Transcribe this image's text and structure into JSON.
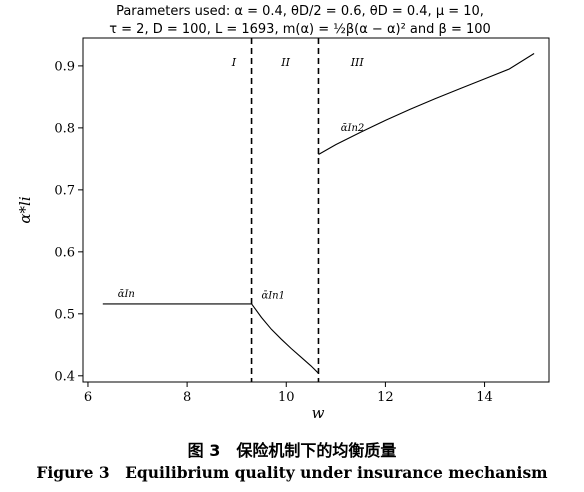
{
  "figure": {
    "caption_cn": "图 3　保险机制下的均衡质量",
    "caption_en": "Figure 3　Equilibrium quality under insurance mechanism"
  },
  "chart_data": {
    "type": "line",
    "title_line1": "Parameters used: α = 0.4, θD/2 = 0.6, θD = 0.4, μ = 10,",
    "title_line2": "τ = 2, D = 100, L = 1693, m(α) = ½β(α − α)² and β = 100",
    "xlabel": "w",
    "ylabel": "α*li",
    "xlim": [
      5.9,
      15.3
    ],
    "ylim": [
      0.39,
      0.945
    ],
    "xticks": [
      6,
      8,
      10,
      12,
      14
    ],
    "yticks": [
      0.4,
      0.5,
      0.6,
      0.7,
      0.8,
      0.9
    ],
    "xtick_labels": [
      "6",
      "8",
      "10",
      "12",
      "14"
    ],
    "ytick_labels": [
      "0.4",
      "0.5",
      "0.6",
      "0.7",
      "0.8",
      "0.9"
    ],
    "vlines": [
      9.3,
      10.65
    ],
    "regions": [
      {
        "label": "I",
        "x": 8.9,
        "y": 0.9
      },
      {
        "label": "II",
        "x": 9.9,
        "y": 0.9
      },
      {
        "label": "III",
        "x": 11.3,
        "y": 0.9
      }
    ],
    "series": [
      {
        "name": "ᾱIn",
        "label_x": 6.6,
        "label_y": 0.527,
        "x": [
          6.3,
          9.3
        ],
        "y": [
          0.516,
          0.516
        ]
      },
      {
        "name": "ᾱIn1",
        "label_x": 9.5,
        "label_y": 0.525,
        "x": [
          9.3,
          9.5,
          9.7,
          9.9,
          10.1,
          10.3,
          10.5,
          10.65
        ],
        "y": [
          0.516,
          0.494,
          0.475,
          0.459,
          0.444,
          0.43,
          0.416,
          0.404
        ]
      },
      {
        "name": "ᾱIn2",
        "label_x": 11.1,
        "label_y": 0.795,
        "x": [
          10.65,
          11.0,
          11.5,
          12.0,
          12.5,
          13.0,
          13.5,
          14.0,
          14.5,
          15.0
        ],
        "y": [
          0.757,
          0.773,
          0.793,
          0.812,
          0.83,
          0.847,
          0.863,
          0.879,
          0.895,
          0.92
        ]
      }
    ]
  }
}
